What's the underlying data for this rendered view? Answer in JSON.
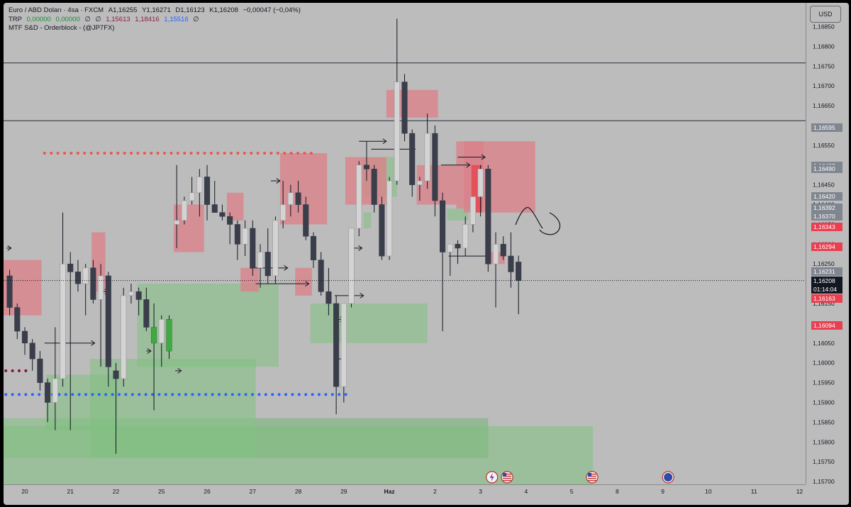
{
  "legend": {
    "symbol": "Euro / ABD Doları · 4sa · FXCM",
    "open_label": "A",
    "open": "1,16255",
    "high_label": "Y",
    "high": "1,16271",
    "low_label": "D",
    "low": "1,16123",
    "close_label": "K",
    "close": "1,16208",
    "change": "−0,00047 (−0,04%)",
    "trp_name": "TRP",
    "trp_values": [
      "0,00000",
      "0,00000",
      "∅",
      "∅"
    ],
    "trp_level_1": "1,15613",
    "trp_level_2": "1,18416",
    "trp_level_3": "1,15516",
    "trp_tail": "∅",
    "indicator": "MTF S&D - Orderblock - (@JP7FX)"
  },
  "currency_button": "USD",
  "countdown": "01:14:04",
  "colors": {
    "background": "#bcbcbc",
    "bull_body": "#d4d4d4",
    "bear_body": "#3a3d4a",
    "supply_zone": "#d9828a",
    "demand_zone": "#7fbf7f",
    "red_dots": "#ef5350",
    "blue_dots": "#2962ff",
    "label_red": "#e84050",
    "label_gray": "#808690",
    "label_dark": "#131722"
  },
  "price_axis": {
    "ticks": [
      "1,16850",
      "1,16800",
      "1,16750",
      "1,16700",
      "1,16650",
      "1,16600",
      "1,16550",
      "1,16500",
      "1,16450",
      "1,16400",
      "1,16350",
      "1,16300",
      "1,16250",
      "1,16200",
      "1,16150",
      "1,16100",
      "1,16050",
      "1,16000",
      "1,15950",
      "1,15900",
      "1,15850",
      "1,15800",
      "1,15750",
      "1,15700"
    ]
  },
  "price_labels": [
    {
      "value": 1.16595,
      "text": "1,16595",
      "style": "gray"
    },
    {
      "value": 1.16497,
      "text": "1,16497",
      "style": "gray"
    },
    {
      "value": 1.1649,
      "text": "1,16490",
      "style": "gray"
    },
    {
      "value": 1.1642,
      "text": "1,16420",
      "style": "gray"
    },
    {
      "value": 1.16392,
      "text": "1,16392",
      "style": "gray"
    },
    {
      "value": 1.1637,
      "text": "1,16370",
      "style": "gray"
    },
    {
      "value": 1.16344,
      "text": "1,16344",
      "style": "gray"
    },
    {
      "value": 1.16343,
      "text": "1,16343",
      "style": "red"
    },
    {
      "value": 1.16294,
      "text": "1,16294",
      "style": "red"
    },
    {
      "value": 1.16231,
      "text": "1,16231",
      "style": "gray"
    },
    {
      "value": 1.16208,
      "text": "1,16208",
      "style": "dark"
    },
    {
      "value": 1.16163,
      "text": "1,16163",
      "style": "red"
    },
    {
      "value": 1.16094,
      "text": "1,16094",
      "style": "red"
    }
  ],
  "time_axis": {
    "labels": [
      {
        "text": "20",
        "bar": 2
      },
      {
        "text": "21",
        "bar": 8
      },
      {
        "text": "22",
        "bar": 14
      },
      {
        "text": "25",
        "bar": 20
      },
      {
        "text": "26",
        "bar": 26
      },
      {
        "text": "27",
        "bar": 32
      },
      {
        "text": "28",
        "bar": 38
      },
      {
        "text": "29",
        "bar": 44
      },
      {
        "text": "Haz",
        "bar": 50
      },
      {
        "text": "2",
        "bar": 56
      },
      {
        "text": "3",
        "bar": 62
      },
      {
        "text": "4",
        "bar": 68
      },
      {
        "text": "5",
        "bar": 74
      },
      {
        "text": "8",
        "bar": 80
      },
      {
        "text": "9",
        "bar": 86
      },
      {
        "text": "10",
        "bar": 92
      },
      {
        "text": "11",
        "bar": 98
      },
      {
        "text": "12",
        "bar": 104
      }
    ]
  },
  "horizontal_lines": [
    1.16758,
    1.16612
  ],
  "event_icons": [
    {
      "bar": 63.5,
      "name": "dividend-icon"
    },
    {
      "bar": 65.5,
      "name": "us-flag-icon"
    },
    {
      "bar": 76.7,
      "name": "us-flag-icon"
    },
    {
      "bar": 86.7,
      "name": "eu-flag-icon"
    }
  ],
  "chart_data": {
    "type": "candlestick",
    "symbol": "EUR/USD",
    "timeframe": "4h",
    "y_range": [
      1.15693,
      1.1691
    ],
    "x_range_bars": [
      -0.8,
      104.8
    ],
    "candles": [
      [
        1.1622,
        1.16235,
        1.1612,
        1.1614
      ],
      [
        1.1614,
        1.1615,
        1.1606,
        1.1608
      ],
      [
        1.1608,
        1.1609,
        1.1602,
        1.1605
      ],
      [
        1.1605,
        1.1606,
        1.1598,
        1.1601
      ],
      [
        1.1601,
        1.1603,
        1.1593,
        1.1595
      ],
      [
        1.1595,
        1.1596,
        1.1585,
        1.159
      ],
      [
        1.159,
        1.1609,
        1.1583,
        1.1596
      ],
      [
        1.1596,
        1.1638,
        1.1594,
        1.1625
      ],
      [
        1.1625,
        1.1628,
        1.1583,
        1.1623
      ],
      [
        1.1623,
        1.1626,
        1.1618,
        1.162
      ],
      [
        1.162,
        1.1625,
        1.1612,
        1.1624
      ],
      [
        1.1624,
        1.1626,
        1.1615,
        1.1616
      ],
      [
        1.1616,
        1.1625,
        1.1599,
        1.1622
      ],
      [
        1.1622,
        1.1623,
        1.1594,
        1.1599
      ],
      [
        1.1598,
        1.16,
        1.1577,
        1.1596
      ],
      [
        1.1596,
        1.1619,
        1.1594,
        1.1617
      ],
      [
        1.1617,
        1.162,
        1.1615,
        1.1618
      ],
      [
        1.1618,
        1.1619,
        1.1612,
        1.1616
      ],
      [
        1.1616,
        1.1619,
        1.1608,
        1.1609
      ],
      [
        1.1609,
        1.1615,
        1.1588,
        1.1605
      ],
      [
        1.1605,
        1.1612,
        1.1599,
        1.1611
      ],
      [
        1.1611,
        1.1612,
        1.1601,
        1.1603
      ],
      [
        1.1635,
        1.165,
        1.1629,
        1.1636
      ],
      [
        1.1636,
        1.1642,
        1.1635,
        1.1641
      ],
      [
        1.1641,
        1.1647,
        1.164,
        1.1643
      ],
      [
        1.1643,
        1.1649,
        1.1637,
        1.1647
      ],
      [
        1.1647,
        1.165,
        1.1636,
        1.164
      ],
      [
        1.164,
        1.1646,
        1.1638,
        1.1638
      ],
      [
        1.1638,
        1.164,
        1.1636,
        1.1637
      ],
      [
        1.1637,
        1.1638,
        1.163,
        1.1635
      ],
      [
        1.1635,
        1.1636,
        1.1626,
        1.163
      ],
      [
        1.163,
        1.1636,
        1.1627,
        1.1634
      ],
      [
        1.1634,
        1.1636,
        1.1622,
        1.1624
      ],
      [
        1.1624,
        1.163,
        1.1619,
        1.1628
      ],
      [
        1.1628,
        1.1634,
        1.162,
        1.1622
      ],
      [
        1.1622,
        1.1637,
        1.162,
        1.1636
      ],
      [
        1.1636,
        1.1646,
        1.1634,
        1.164
      ],
      [
        1.164,
        1.1645,
        1.1637,
        1.1643
      ],
      [
        1.1643,
        1.1646,
        1.1638,
        1.164
      ],
      [
        1.164,
        1.1642,
        1.1631,
        1.1632
      ],
      [
        1.1632,
        1.1633,
        1.1624,
        1.1626
      ],
      [
        1.1626,
        1.1628,
        1.1617,
        1.1618
      ],
      [
        1.1618,
        1.1624,
        1.1612,
        1.1615
      ],
      [
        1.1615,
        1.1617,
        1.1587,
        1.1594
      ],
      [
        1.1594,
        1.1615,
        1.159,
        1.1615
      ],
      [
        1.1615,
        1.1634,
        1.1614,
        1.1634
      ],
      [
        1.1634,
        1.1651,
        1.1632,
        1.165
      ],
      [
        1.165,
        1.1656,
        1.1646,
        1.1649
      ],
      [
        1.1649,
        1.165,
        1.1638,
        1.164
      ],
      [
        1.164,
        1.1642,
        1.1626,
        1.1627
      ],
      [
        1.1627,
        1.1647,
        1.1626,
        1.1646
      ],
      [
        1.1646,
        1.1687,
        1.1645,
        1.1671
      ],
      [
        1.1671,
        1.1673,
        1.1656,
        1.1658
      ],
      [
        1.1658,
        1.1659,
        1.1642,
        1.1645
      ],
      [
        1.1645,
        1.1647,
        1.1641,
        1.1646
      ],
      [
        1.1646,
        1.1663,
        1.1644,
        1.1658
      ],
      [
        1.1658,
        1.166,
        1.1637,
        1.1641
      ],
      [
        1.1641,
        1.1643,
        1.1608,
        1.1628
      ],
      [
        1.1628,
        1.163,
        1.1622,
        1.163
      ],
      [
        1.163,
        1.1631,
        1.1625,
        1.1629
      ],
      [
        1.1629,
        1.1637,
        1.1627,
        1.1635
      ],
      [
        1.1635,
        1.1642,
        1.1633,
        1.1642
      ],
      [
        1.1642,
        1.165,
        1.1637,
        1.1649
      ],
      [
        1.1649,
        1.165,
        1.1623,
        1.1625
      ],
      [
        1.1625,
        1.1633,
        1.1614,
        1.163
      ],
      [
        1.163,
        1.1632,
        1.1626,
        1.1627
      ],
      [
        1.1627,
        1.1633,
        1.1619,
        1.1623
      ],
      [
        1.16255,
        1.16271,
        1.16123,
        1.16208
      ]
    ],
    "supply_zones": [
      [
        -0.8,
        4.2,
        1.1626,
        1.1612
      ],
      [
        10.8,
        12.6,
        1.1633,
        1.1618
      ],
      [
        21.6,
        25.6,
        1.164,
        1.1628
      ],
      [
        28.6,
        30.8,
        1.1643,
        1.1636
      ],
      [
        30.4,
        32.8,
        1.1624,
        1.1618
      ],
      [
        35.6,
        41.8,
        1.1653,
        1.1635
      ],
      [
        37.6,
        39.8,
        1.1624,
        1.1617
      ],
      [
        44.2,
        49.6,
        1.1652,
        1.164
      ],
      [
        49.6,
        56.4,
        1.1669,
        1.1662
      ],
      [
        53.6,
        58.8,
        1.165,
        1.164
      ],
      [
        58.8,
        62.4,
        1.1656,
        1.1639
      ],
      [
        59.8,
        69.2,
        1.1656,
        1.1638
      ],
      [
        62.6,
        65.2,
        1.1628,
        1.1625
      ]
    ],
    "demand_zones": [
      [
        16.8,
        35.4,
        1.162,
        1.1599
      ],
      [
        39.6,
        55.0,
        1.1615,
        1.1605
      ],
      [
        46.6,
        51.0,
        1.1652,
        1.1642
      ],
      [
        46.6,
        47.6,
        1.1638,
        1.1634
      ],
      [
        57.6,
        60.4,
        1.1639,
        1.1636
      ],
      [
        4.8,
        14.2,
        1.1597,
        1.1583
      ],
      [
        10.6,
        32.4,
        1.1601,
        1.1576
      ],
      [
        -0.8,
        63.0,
        1.1586,
        1.1576
      ],
      [
        -0.8,
        76.8,
        1.1584,
        1.15693
      ]
    ],
    "gray_zones": [
      [
        32.4,
        63.0,
        1.1586,
        1.1576
      ]
    ],
    "dotted_levels": [
      {
        "color": "red",
        "price": 1.1653,
        "from": 4.6,
        "to": 40.4
      },
      {
        "color": "darkred",
        "price": 1.1598,
        "from": -0.5,
        "to": 2.2
      },
      {
        "color": "blue",
        "price": 1.1592,
        "from": -0.5,
        "to": 44.8
      }
    ]
  }
}
